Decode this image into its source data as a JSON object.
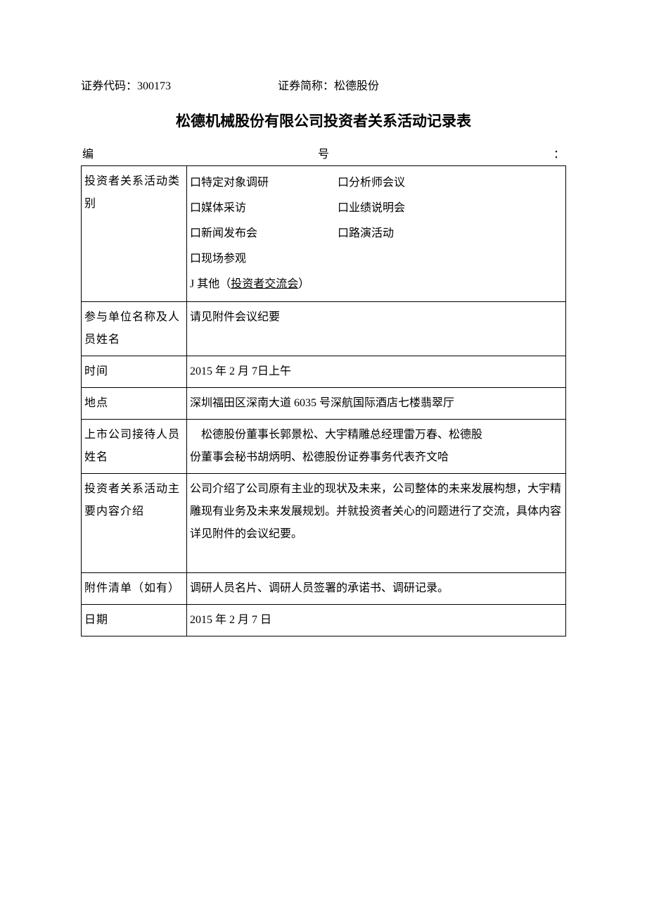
{
  "header": {
    "code_label": "证券代码：",
    "code_value": "300173",
    "name_label": "证券简称：",
    "name_value": "松德股份"
  },
  "title": "松德机械股份有限公司投资者关系活动记录表",
  "serial": {
    "left": "编",
    "mid": "号",
    "right": "："
  },
  "table": {
    "row1": {
      "label": "投资者关系活动类别",
      "options": {
        "opt1": "口特定对象调研",
        "opt2": "口分析师会议",
        "opt3": "口媒体采访",
        "opt4": "口业绩说明会",
        "opt5": "口新闻发布会",
        "opt6": "口路演活动",
        "opt7": "口现场参观",
        "opt8_prefix": "J 其他（",
        "opt8_underline": "投资者交流会",
        "opt8_suffix": "）"
      }
    },
    "row2": {
      "label": "参与单位名称及人员姓名",
      "value": "请见附件会议纪要"
    },
    "row3": {
      "label": "时间",
      "value": "2015 年 2 月 7日上午"
    },
    "row4": {
      "label": "地点",
      "value": "深圳福田区深南大道 6035 号深航国际酒店七楼翡翠厅"
    },
    "row5": {
      "label": "上市公司接待人员姓名",
      "value_line1": "松德股份董事长郭景松、大宇精雕总经理雷万春、松德股",
      "value_line2": "份董事会秘书胡炳明、松德股份证券事务代表齐文哈"
    },
    "row6": {
      "label": "投资者关系活动主要内容介绍",
      "value": "公司介绍了公司原有主业的现状及未来，公司整体的未来发展构想，大宇精雕现有业务及未来发展规划。并就投资者关心的问题进行了交流，具体内容详见附件的会议纪要。"
    },
    "row7": {
      "label": "附件清单（如有）",
      "value": "调研人员名片、调研人员签署的承诺书、调研记录。"
    },
    "row8": {
      "label": "日期",
      "value": "2015 年 2 月 7 日"
    }
  }
}
